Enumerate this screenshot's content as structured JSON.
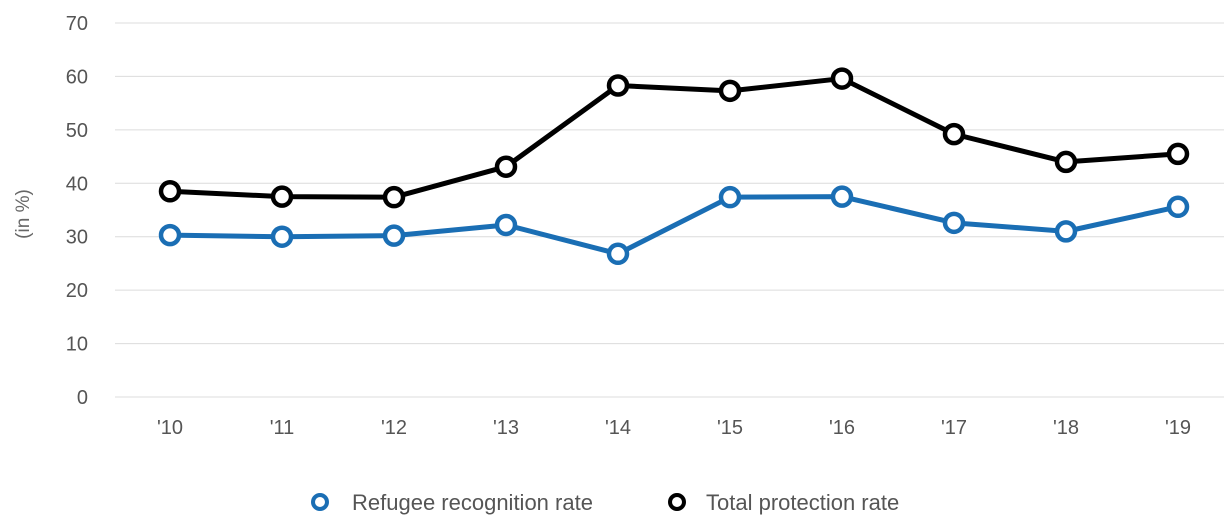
{
  "chart_data": {
    "type": "line",
    "x": [
      "'10",
      "'11",
      "'12",
      "'13",
      "'14",
      "'15",
      "'16",
      "'17",
      "'18",
      "'19"
    ],
    "series": [
      {
        "name": "Refugee recognition rate",
        "color": "#1a6eb4",
        "values": [
          30.3,
          30.0,
          30.2,
          32.2,
          26.8,
          37.4,
          37.5,
          32.6,
          31.0,
          35.6
        ]
      },
      {
        "name": "Total protection rate",
        "color": "#000000",
        "values": [
          38.5,
          37.5,
          37.4,
          43.1,
          58.3,
          57.3,
          59.6,
          49.2,
          44.0,
          45.5
        ]
      }
    ],
    "ylabel": "(in %)",
    "xlabel": "",
    "ylim": [
      0,
      70
    ],
    "yticks": [
      0,
      10,
      20,
      30,
      40,
      50,
      60,
      70
    ],
    "grid": true,
    "legend_position": "bottom-center"
  }
}
